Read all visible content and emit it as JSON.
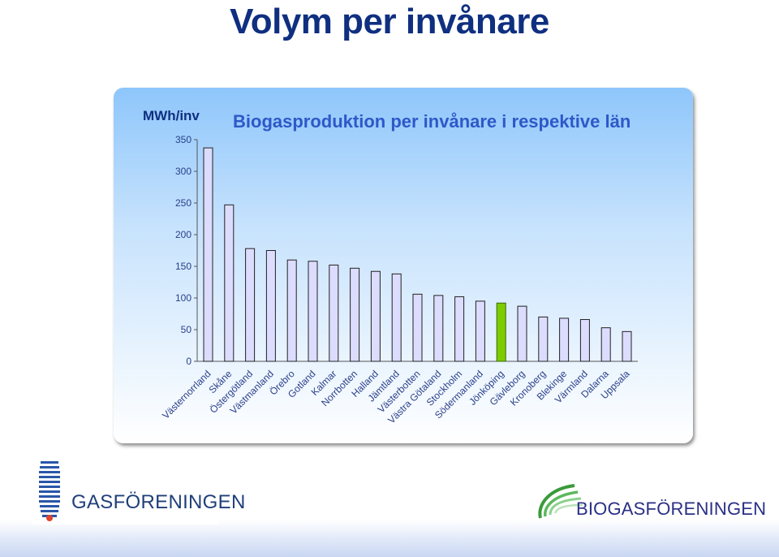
{
  "slide": {
    "title": "Volym per invånare"
  },
  "logos": {
    "left": {
      "text": "GASFÖRENINGEN"
    },
    "right": {
      "text": "BIOGASFÖRENINGEN"
    }
  },
  "colors": {
    "title": "#0f2f80",
    "chart_title": "#2f58c8",
    "bar_fill": "#dcdcff",
    "bar_highlight": "#7ccc00"
  },
  "chart_data": {
    "type": "bar",
    "title": "Biogasproduktion per invånare i respektive län",
    "ylabel": "MWh/inv",
    "xlabel": "",
    "ylim": [
      0,
      350
    ],
    "yticks": [
      0,
      50,
      100,
      150,
      200,
      250,
      300,
      350
    ],
    "grid": false,
    "categories": [
      "Västernorrland",
      "Skåne",
      "Östergötland",
      "Västmanland",
      "Örebro",
      "Gotland",
      "Kalmar",
      "Norrbotten",
      "Halland",
      "Jämtland",
      "Västerbotten",
      "Västra Götaland",
      "Stockholm",
      "Södermanland",
      "Jönköping",
      "Gävleborg",
      "Kronoberg",
      "Blekinge",
      "Värmland",
      "Dalarna",
      "Uppsala"
    ],
    "values": [
      337,
      247,
      178,
      175,
      160,
      158,
      152,
      147,
      142,
      138,
      106,
      104,
      102,
      95,
      92,
      87,
      70,
      68,
      66,
      53,
      47
    ],
    "highlight_index": 14
  }
}
